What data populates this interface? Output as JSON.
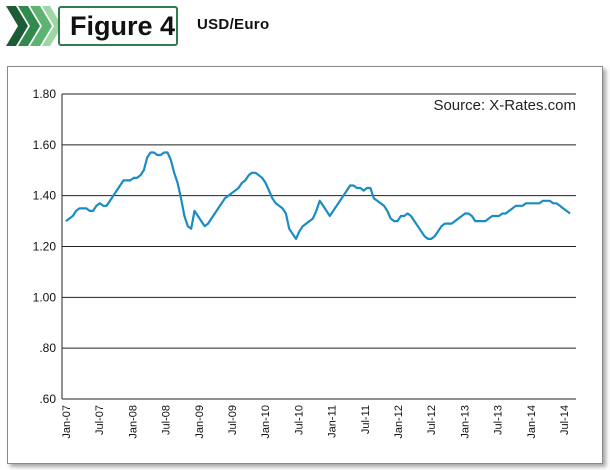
{
  "header": {
    "figure_label": "Figure 4",
    "title": "USD/Euro",
    "accent_colors": [
      "#1c5c35",
      "#2f8a4c",
      "#5db36f",
      "#9fd6a6"
    ]
  },
  "chart_data": {
    "type": "line",
    "title": "USD/Euro",
    "annotation": "Source: X-Rates.com",
    "xlabel": "",
    "ylabel": "",
    "ylim": [
      0.6,
      1.8
    ],
    "yticks": [
      1.8,
      1.6,
      1.4,
      1.2,
      1.0,
      0.8,
      0.6
    ],
    "ytick_labels": [
      "1.80",
      "1.60",
      "1.40",
      "1.20",
      "1.00",
      ".80",
      ".60"
    ],
    "xtick_labels": [
      "Jan-07",
      "Jul-07",
      "Jan-08",
      "Jul-08",
      "Jan-09",
      "Jul-09",
      "Jan-10",
      "Jul-10",
      "Jan-11",
      "Jul-11",
      "Jan-12",
      "Jul-12",
      "Jan-13",
      "Jul-13",
      "Jan-14",
      "Jul-14"
    ],
    "grid": true,
    "line_color": "#1a8cc4",
    "series": [
      {
        "values": [
          1.3,
          1.31,
          1.32,
          1.34,
          1.35,
          1.35,
          1.35,
          1.34,
          1.34,
          1.36,
          1.37,
          1.36,
          1.36,
          1.38,
          1.4,
          1.42,
          1.44,
          1.46,
          1.46,
          1.46,
          1.47,
          1.47,
          1.48,
          1.5,
          1.55,
          1.57,
          1.57,
          1.56,
          1.56,
          1.57,
          1.57,
          1.54,
          1.49,
          1.45,
          1.39,
          1.32,
          1.28,
          1.27,
          1.34,
          1.32,
          1.3,
          1.28,
          1.29,
          1.31,
          1.33,
          1.35,
          1.37,
          1.39,
          1.4,
          1.41,
          1.42,
          1.43,
          1.45,
          1.46,
          1.48,
          1.49,
          1.49,
          1.48,
          1.47,
          1.45,
          1.42,
          1.39,
          1.37,
          1.36,
          1.35,
          1.33,
          1.27,
          1.25,
          1.23,
          1.26,
          1.28,
          1.29,
          1.3,
          1.31,
          1.34,
          1.38,
          1.36,
          1.34,
          1.32,
          1.34,
          1.36,
          1.38,
          1.4,
          1.42,
          1.44,
          1.44,
          1.43,
          1.43,
          1.42,
          1.43,
          1.43,
          1.39,
          1.38,
          1.37,
          1.36,
          1.34,
          1.31,
          1.3,
          1.3,
          1.32,
          1.32,
          1.33,
          1.32,
          1.3,
          1.28,
          1.26,
          1.24,
          1.23,
          1.23,
          1.24,
          1.26,
          1.28,
          1.29,
          1.29,
          1.29,
          1.3,
          1.31,
          1.32,
          1.33,
          1.33,
          1.32,
          1.3,
          1.3,
          1.3,
          1.3,
          1.31,
          1.32,
          1.32,
          1.32,
          1.33,
          1.33,
          1.34,
          1.35,
          1.36,
          1.36,
          1.36,
          1.37,
          1.37,
          1.37,
          1.37,
          1.37,
          1.38,
          1.38,
          1.38,
          1.37,
          1.37,
          1.36,
          1.35,
          1.34,
          1.33
        ]
      }
    ]
  }
}
